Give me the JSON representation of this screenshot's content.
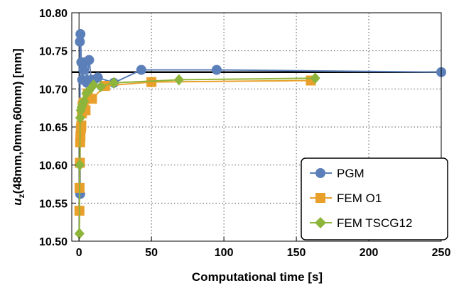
{
  "chart_data": {
    "type": "line",
    "xlabel": "Computational time [s]",
    "ylabel_parts": {
      "main": "u",
      "sub": "z",
      "rest": "(48mm,0mm,60mm) [mm]"
    },
    "xlim": [
      -5,
      250
    ],
    "ylim": [
      10.5,
      10.8
    ],
    "xticks": [
      0,
      50,
      100,
      150,
      200,
      250
    ],
    "yticks": [
      10.5,
      10.55,
      10.6,
      10.65,
      10.7,
      10.75,
      10.8
    ],
    "ytick_labels": [
      "10.50",
      "10.55",
      "10.60",
      "10.65",
      "10.70",
      "10.75",
      "10.80"
    ],
    "grid": true,
    "legend_position": "bottom-right",
    "reference_line": {
      "y": 10.722,
      "color": "#000000"
    },
    "series": [
      {
        "name": "PGM",
        "marker": "circle",
        "color": "#5B7FB8",
        "x": [
          0.8,
          0.6,
          1.0,
          1.6,
          2.2,
          3.0,
          4.0,
          5.5,
          7.0,
          8.5,
          10.5,
          13.0,
          24.0,
          43.0,
          95.0,
          250.0
        ],
        "y": [
          10.562,
          10.762,
          10.772,
          10.735,
          10.712,
          10.725,
          10.735,
          10.708,
          10.738,
          10.712,
          10.712,
          10.715,
          10.708,
          10.725,
          10.725,
          10.722
        ]
      },
      {
        "name": "FEM O1",
        "marker": "square",
        "color": "#E8A02A",
        "x": [
          0.3,
          0.4,
          0.6,
          0.8,
          1.0,
          1.3,
          1.6,
          2.0,
          2.5,
          3.2,
          4.5,
          6.0,
          9.0,
          18.0,
          50.0,
          160.0
        ],
        "y": [
          10.54,
          10.57,
          10.603,
          10.63,
          10.638,
          10.648,
          10.652,
          10.668,
          10.678,
          10.682,
          10.672,
          10.694,
          10.687,
          10.704,
          10.709,
          10.711
        ]
      },
      {
        "name": "FEM TSCG12",
        "marker": "diamond",
        "color": "#8DB53B",
        "x": [
          0.3,
          0.5,
          0.8,
          1.2,
          1.8,
          2.5,
          3.5,
          5.0,
          7.0,
          10.0,
          15.0,
          24.0,
          69.0,
          163.0
        ],
        "y": [
          10.51,
          10.6,
          10.662,
          10.672,
          10.676,
          10.68,
          10.684,
          10.694,
          10.698,
          10.705,
          10.703,
          10.708,
          10.712,
          10.714
        ]
      }
    ]
  }
}
